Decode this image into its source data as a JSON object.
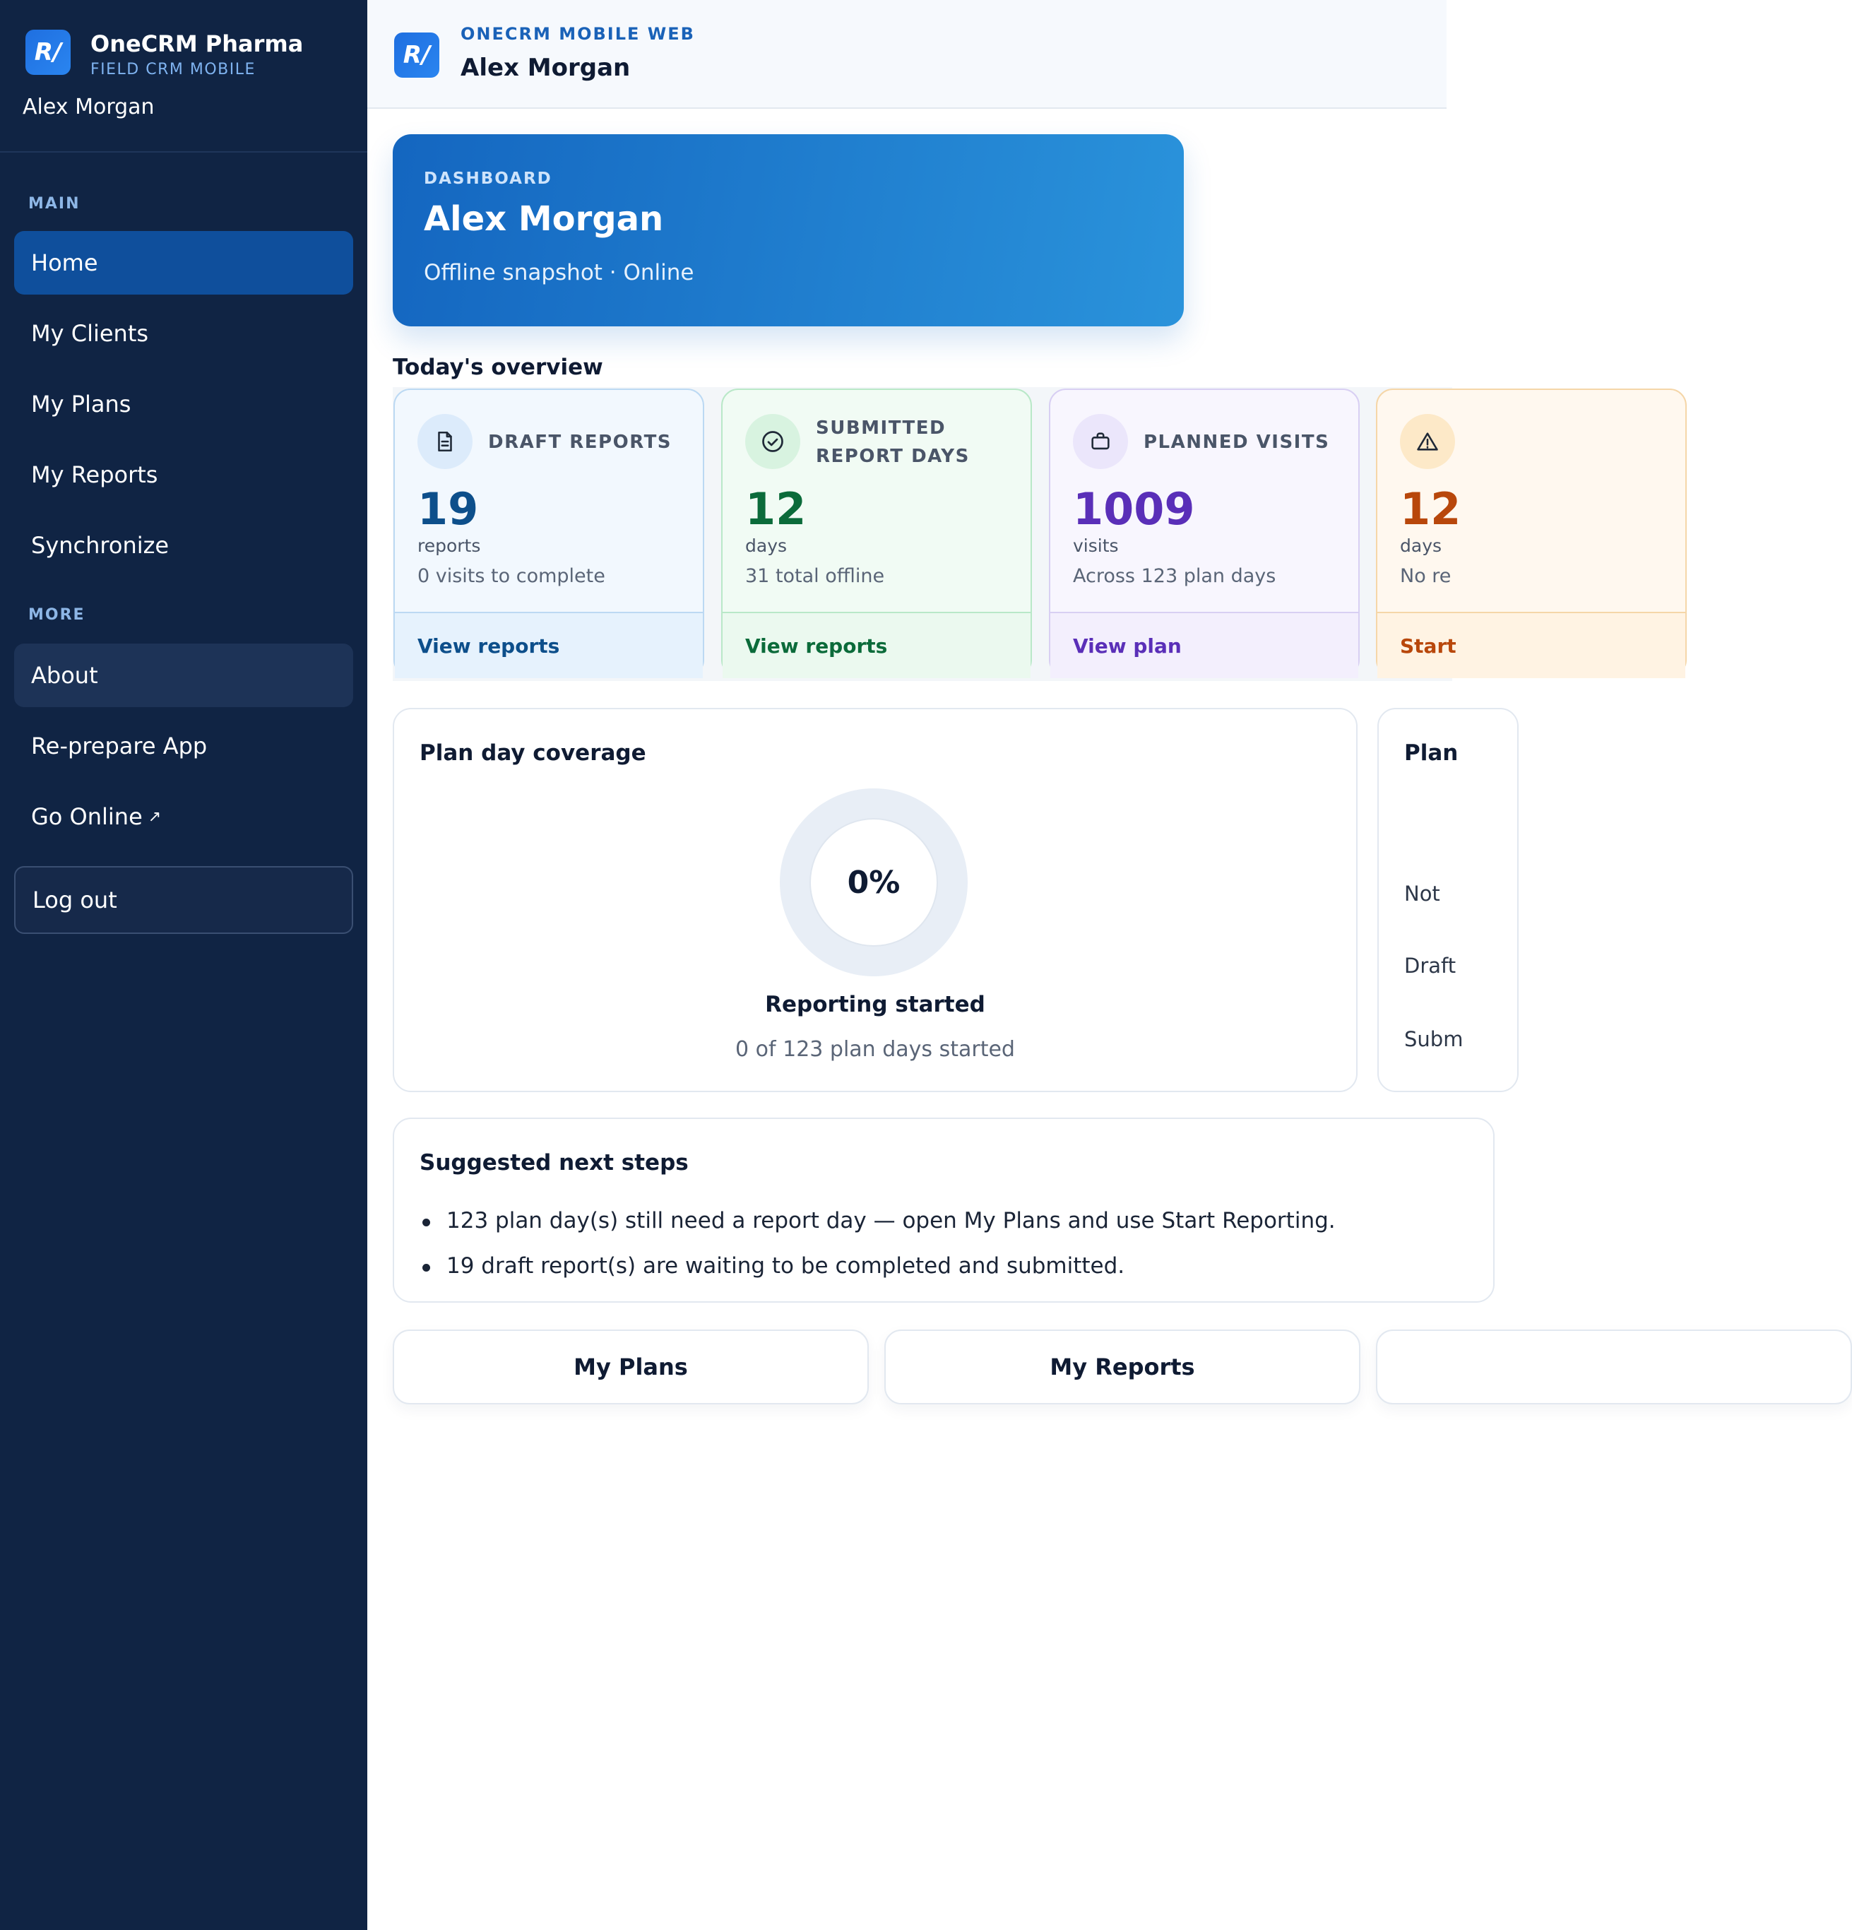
{
  "app": {
    "logo_text": "R/",
    "name": "OneCRM Pharma",
    "subtitle": "FIELD CRM MOBILE",
    "user": "Alex Morgan"
  },
  "sidebar": {
    "main_label": "MAIN",
    "main_items": [
      {
        "label": "Home",
        "active": true
      },
      {
        "label": "My Clients"
      },
      {
        "label": "My Plans"
      },
      {
        "label": "My Reports"
      },
      {
        "label": "Synchronize"
      }
    ],
    "more_label": "MORE",
    "more_items": [
      {
        "label": "About"
      },
      {
        "label": "Re-prepare App"
      },
      {
        "label": "Go Online",
        "external_glyph": "↗"
      }
    ],
    "logout_label": "Log out"
  },
  "header": {
    "eyebrow": "ONECRM MOBILE WEB",
    "title": "Alex Morgan"
  },
  "hero": {
    "eyebrow": "DASHBOARD",
    "title": "Alex Morgan",
    "subtitle": "Offline snapshot · Online"
  },
  "overview": {
    "title": "Today's overview",
    "cards": [
      {
        "icon": "document-icon",
        "label": "DRAFT REPORTS",
        "value": "19",
        "unit": "reports",
        "note": "0 visits to complete",
        "action": "View reports",
        "accent": "#0d4f8b",
        "bg": "#f2f8fe",
        "border": "#bcd9f3",
        "icon_bg": "#dcebfb",
        "footer_bg": "#e6f2fd"
      },
      {
        "icon": "check-circle-icon",
        "label": "SUBMITTED REPORT DAYS",
        "value": "12",
        "unit": "days",
        "note": "31 total offline",
        "action": "View reports",
        "accent": "#0b6b3a",
        "bg": "#f1fbf4",
        "border": "#b9e8c8",
        "icon_bg": "#d8f3e0",
        "footer_bg": "#ebf9ef"
      },
      {
        "icon": "briefcase-icon",
        "label": "PLANNED VISITS",
        "value": "1009",
        "unit": "visits",
        "note": "Across 123 plan days",
        "action": "View plan",
        "accent": "#5a2fb8",
        "bg": "#f8f6fe",
        "border": "#d8cff3",
        "icon_bg": "#ebe6fb",
        "footer_bg": "#f3effd"
      },
      {
        "icon": "warning-icon",
        "label": "",
        "value": "12",
        "unit": "days",
        "note": "No re",
        "action": "Start",
        "accent": "#b8470b",
        "bg": "#fff8ef",
        "border": "#f5d6a8",
        "icon_bg": "#fde9c8",
        "footer_bg": "#fff3e3"
      }
    ]
  },
  "coverage": {
    "title": "Plan day coverage",
    "percent_label": "0%",
    "label": "Reporting started",
    "sub": "0 of 123 plan days started"
  },
  "plan_panel": {
    "title": "Plan",
    "legend": [
      "Not",
      "Draft",
      "Subm"
    ]
  },
  "next_steps": {
    "title": "Suggested next steps",
    "items": [
      "123 plan day(s) still need a report day — open My Plans and use Start Reporting.",
      "19 draft report(s) are waiting to be completed and submitted."
    ]
  },
  "quick_actions": [
    "My Plans",
    "My Reports",
    ""
  ]
}
